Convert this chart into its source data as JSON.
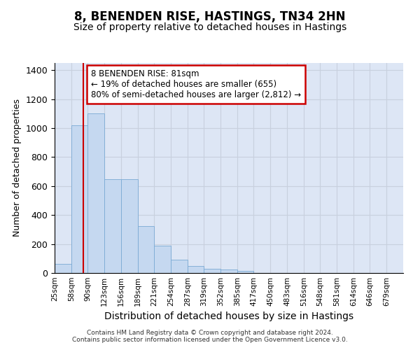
{
  "title": "8, BENENDEN RISE, HASTINGS, TN34 2HN",
  "subtitle": "Size of property relative to detached houses in Hastings",
  "xlabel": "Distribution of detached houses by size in Hastings",
  "ylabel": "Number of detached properties",
  "bin_labels": [
    "25sqm",
    "58sqm",
    "90sqm",
    "123sqm",
    "156sqm",
    "189sqm",
    "221sqm",
    "254sqm",
    "287sqm",
    "319sqm",
    "352sqm",
    "385sqm",
    "417sqm",
    "450sqm",
    "483sqm",
    "516sqm",
    "548sqm",
    "581sqm",
    "614sqm",
    "646sqm",
    "679sqm"
  ],
  "bin_edges": [
    25,
    58,
    90,
    123,
    156,
    189,
    221,
    254,
    287,
    319,
    352,
    385,
    417,
    450,
    483,
    516,
    548,
    581,
    614,
    646,
    679,
    712
  ],
  "bar_values": [
    65,
    1020,
    1100,
    650,
    650,
    325,
    190,
    90,
    50,
    30,
    25,
    15,
    0,
    0,
    0,
    0,
    0,
    0,
    0,
    0,
    0
  ],
  "bar_color": "#c5d8f0",
  "bar_edgecolor": "#7aaad4",
  "grid_color": "#c8d0de",
  "bg_color": "#dde6f5",
  "vline_x": 81,
  "vline_color": "#cc0000",
  "annotation_box_text": "8 BENENDEN RISE: 81sqm\n← 19% of detached houses are smaller (655)\n80% of semi-detached houses are larger (2,812) →",
  "ylim": [
    0,
    1450
  ],
  "yticks": [
    0,
    200,
    400,
    600,
    800,
    1000,
    1200,
    1400
  ],
  "footer_text": "Contains HM Land Registry data © Crown copyright and database right 2024.\nContains public sector information licensed under the Open Government Licence v3.0.",
  "title_fontsize": 12,
  "subtitle_fontsize": 10,
  "xlabel_fontsize": 10,
  "ylabel_fontsize": 9
}
